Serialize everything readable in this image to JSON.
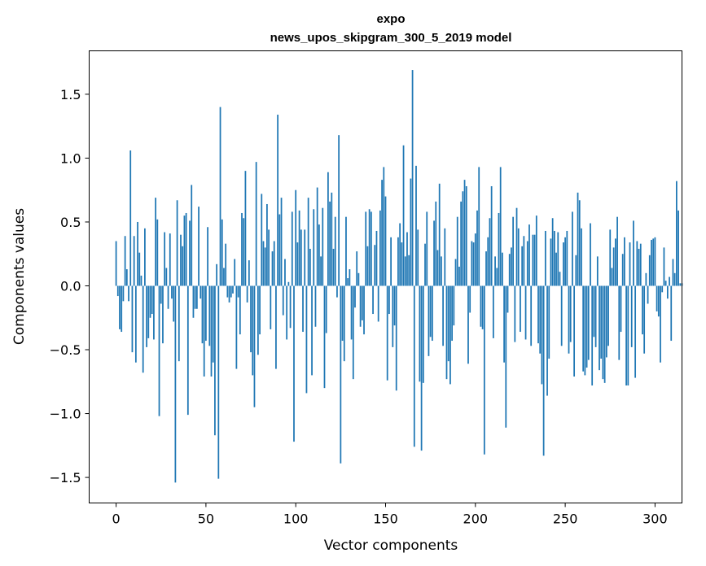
{
  "chart_data": {
    "type": "bar",
    "title": "expo",
    "subtitle": "news_upos_skipgram_300_5_2019 model",
    "xlabel": "Vector components",
    "ylabel": "Components values",
    "xlim": [
      -15,
      315
    ],
    "ylim": [
      -1.7,
      1.84
    ],
    "xticks": [
      0,
      50,
      100,
      150,
      200,
      250,
      300
    ],
    "yticks": [
      -1.5,
      -1.0,
      -0.5,
      0.0,
      0.5,
      1.0,
      1.5
    ],
    "ytick_labels": [
      "−1.5",
      "−1.0",
      "−0.5",
      "0.0",
      "0.5",
      "1.0",
      "1.5"
    ],
    "grid": false,
    "color": "#1f77b4",
    "values": [
      0.35,
      -0.08,
      -0.34,
      -0.36,
      -0.12,
      0.39,
      0.13,
      -0.12,
      1.06,
      -0.52,
      0.39,
      -0.6,
      0.5,
      0.26,
      0.08,
      -0.68,
      0.45,
      -0.48,
      -0.41,
      -0.25,
      -0.22,
      -0.42,
      0.69,
      0.52,
      -1.02,
      -0.14,
      -0.45,
      0.42,
      0.14,
      -0.18,
      0.41,
      -0.1,
      -0.28,
      -1.54,
      0.67,
      -0.59,
      0.4,
      0.31,
      0.55,
      0.57,
      -1.01,
      0.51,
      0.79,
      -0.25,
      -0.18,
      -0.18,
      0.62,
      -0.1,
      -0.45,
      -0.71,
      -0.43,
      0.46,
      -0.47,
      -0.71,
      -0.6,
      -1.17,
      0.17,
      -1.51,
      1.4,
      0.52,
      0.14,
      0.33,
      -0.09,
      -0.13,
      -0.09,
      -0.06,
      0.21,
      -0.65,
      -0.09,
      -0.38,
      0.57,
      0.53,
      0.9,
      -0.13,
      0.2,
      -0.52,
      -0.7,
      -0.95,
      0.97,
      -0.54,
      -0.38,
      0.72,
      0.35,
      0.3,
      0.64,
      0.44,
      -0.34,
      0.27,
      0.35,
      -0.65,
      1.34,
      0.56,
      0.69,
      -0.23,
      0.21,
      -0.42,
      0.03,
      -0.33,
      0.58,
      -1.22,
      0.75,
      0.34,
      0.59,
      0.44,
      -0.36,
      0.44,
      -0.84,
      0.69,
      0.29,
      -0.7,
      0.6,
      -0.32,
      0.77,
      0.48,
      0.23,
      0.61,
      -0.8,
      -0.37,
      0.89,
      0.66,
      0.73,
      0.29,
      0.54,
      -0.09,
      1.18,
      -1.39,
      -0.43,
      -0.59,
      0.54,
      0.06,
      0.13,
      -0.42,
      -0.73,
      -0.17,
      0.27,
      0.1,
      -0.32,
      -0.27,
      -0.38,
      0.58,
      0.31,
      0.6,
      0.58,
      -0.22,
      0.32,
      0.43,
      -0.28,
      0.59,
      0.83,
      0.93,
      0.7,
      -0.74,
      -0.22,
      0.38,
      -0.48,
      -0.31,
      -0.82,
      0.38,
      0.49,
      0.34,
      1.1,
      0.23,
      0.42,
      0.24,
      0.84,
      1.69,
      -1.26,
      0.94,
      0.44,
      -0.75,
      -1.29,
      -0.76,
      0.33,
      0.58,
      -0.55,
      -0.4,
      -0.43,
      0.51,
      0.66,
      0.28,
      0.8,
      0.23,
      -0.47,
      0.45,
      -0.73,
      -0.59,
      -0.77,
      -0.43,
      -0.31,
      0.21,
      0.54,
      0.15,
      0.66,
      0.74,
      0.83,
      0.78,
      -0.61,
      -0.21,
      0.35,
      0.34,
      0.41,
      0.59,
      0.93,
      -0.32,
      -0.34,
      -1.32,
      0.27,
      0.38,
      0.53,
      0.78,
      -0.41,
      0.23,
      0.14,
      0.57,
      0.93,
      0.26,
      -0.6,
      -1.11,
      -0.21,
      0.25,
      0.3,
      0.54,
      -0.44,
      0.61,
      0.45,
      -0.36,
      0.31,
      0.39,
      -0.42,
      0.35,
      0.48,
      -0.47,
      0.4,
      0.4,
      0.55,
      -0.45,
      -0.53,
      -0.77,
      -1.33,
      0.43,
      -0.86,
      -0.57,
      0.37,
      0.53,
      0.43,
      0.26,
      0.42,
      0.11,
      -0.47,
      0.34,
      0.38,
      0.43,
      -0.53,
      -0.44,
      0.58,
      -0.71,
      0.24,
      0.73,
      0.67,
      0.45,
      -0.67,
      -0.7,
      -0.64,
      -0.58,
      0.49,
      -0.78,
      -0.4,
      -0.48,
      0.23,
      -0.66,
      -0.57,
      -0.73,
      -0.76,
      -0.56,
      -0.47,
      0.44,
      0.14,
      0.3,
      0.37,
      0.54,
      -0.58,
      -0.36,
      0.25,
      0.38,
      -0.78,
      -0.78,
      0.34,
      -0.48,
      0.51,
      -0.72,
      0.35,
      0.29,
      0.33,
      -0.38,
      -0.53,
      0.1,
      -0.14,
      0.24,
      0.36,
      0.37,
      0.38,
      -0.2,
      -0.24,
      -0.6,
      -0.05,
      0.3,
      0.04,
      -0.1,
      0.07,
      -0.43,
      0.21,
      0.1,
      0.82,
      0.59,
      0.02,
      0.02
    ]
  }
}
